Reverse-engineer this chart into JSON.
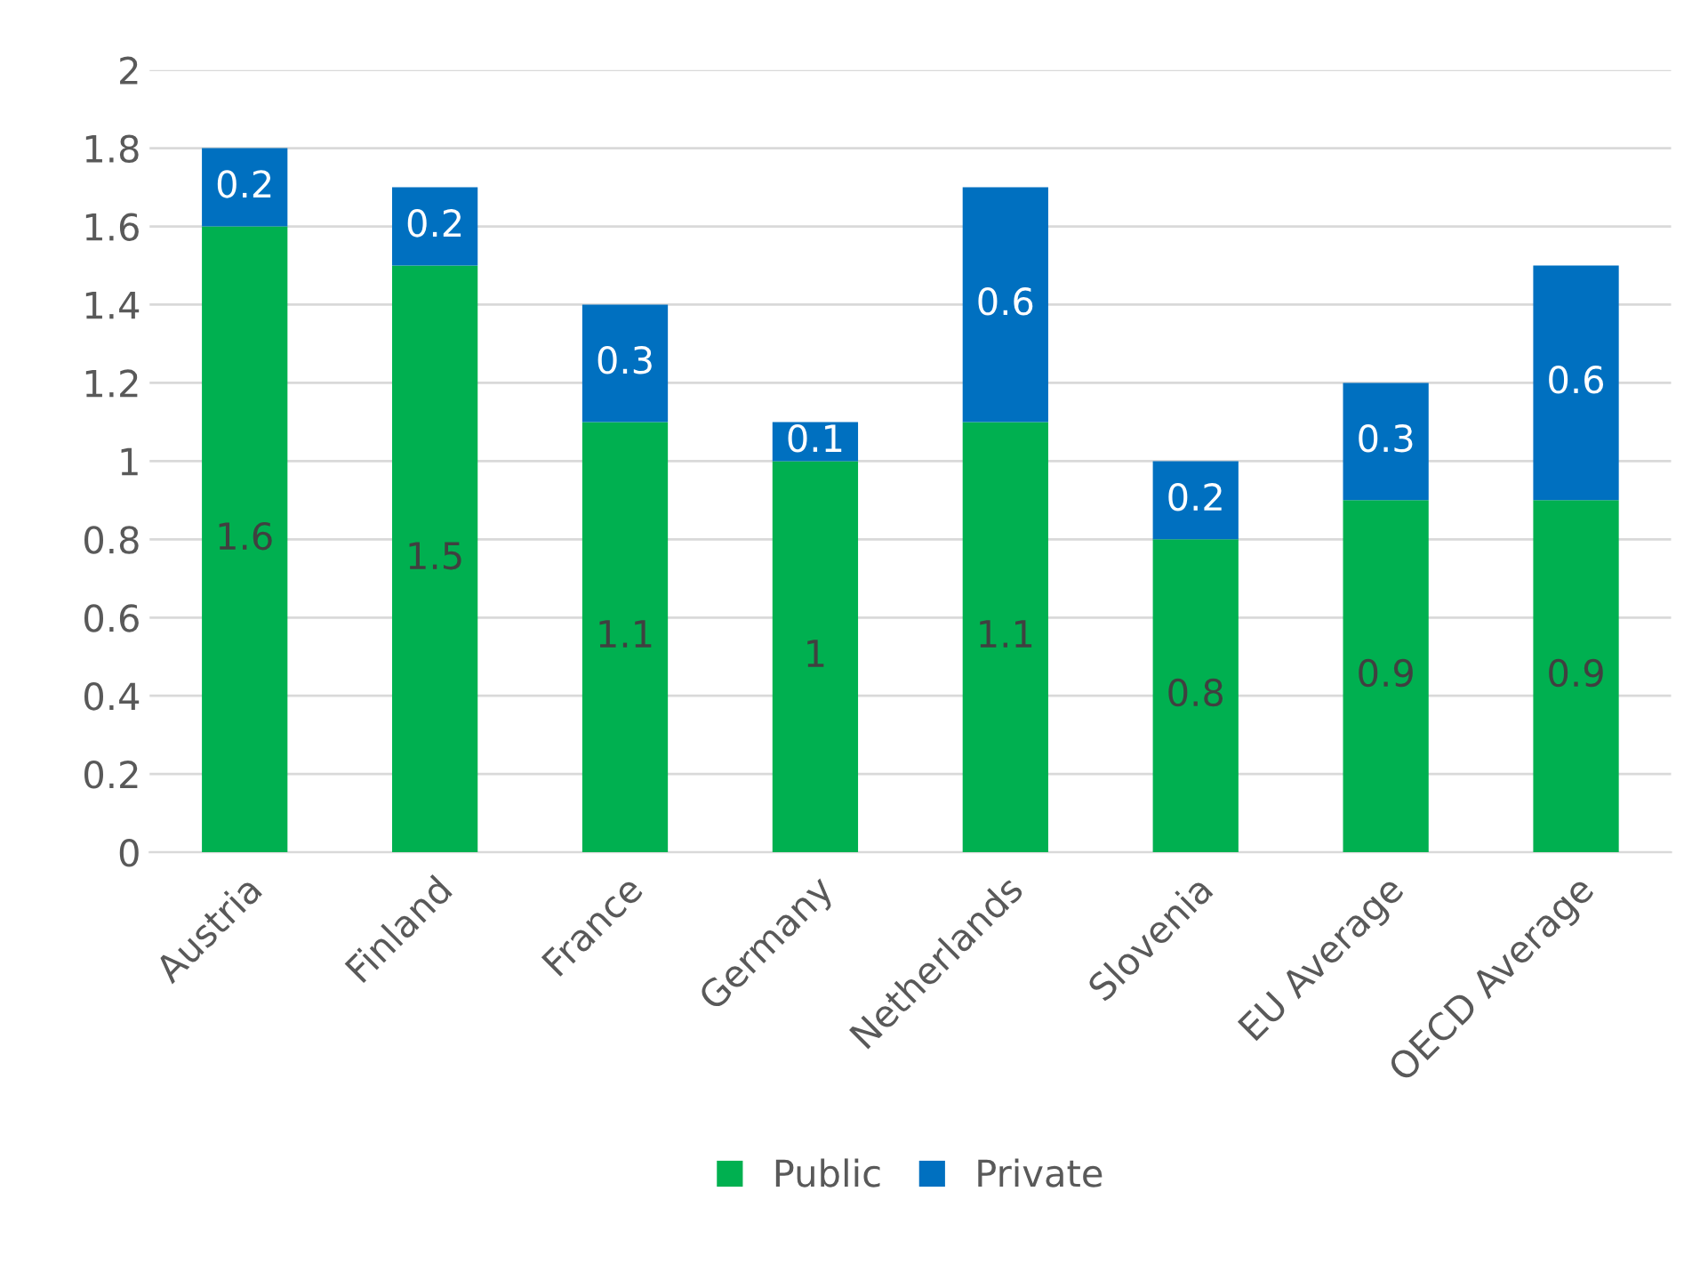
{
  "chart_data": {
    "type": "bar",
    "stacked": true,
    "categories": [
      "Austria",
      "Finland",
      "France",
      "Germany",
      "Netherlands",
      "Slovenia",
      "EU Average",
      "OECD Average"
    ],
    "series": [
      {
        "name": "Public",
        "color": "#00b050",
        "values": [
          1.6,
          1.5,
          1.1,
          1,
          1.1,
          0.8,
          0.9,
          0.9
        ]
      },
      {
        "name": "Private",
        "color": "#0070c0",
        "values": [
          0.2,
          0.2,
          0.3,
          0.1,
          0.6,
          0.2,
          0.3,
          0.6
        ]
      }
    ],
    "ylim": [
      0,
      2
    ],
    "yticks": [
      0,
      0.2,
      0.4,
      0.6,
      0.8,
      1,
      1.2,
      1.4,
      1.6,
      1.8,
      2
    ],
    "grid": "y",
    "legend": "bottom",
    "data_labels": true
  }
}
